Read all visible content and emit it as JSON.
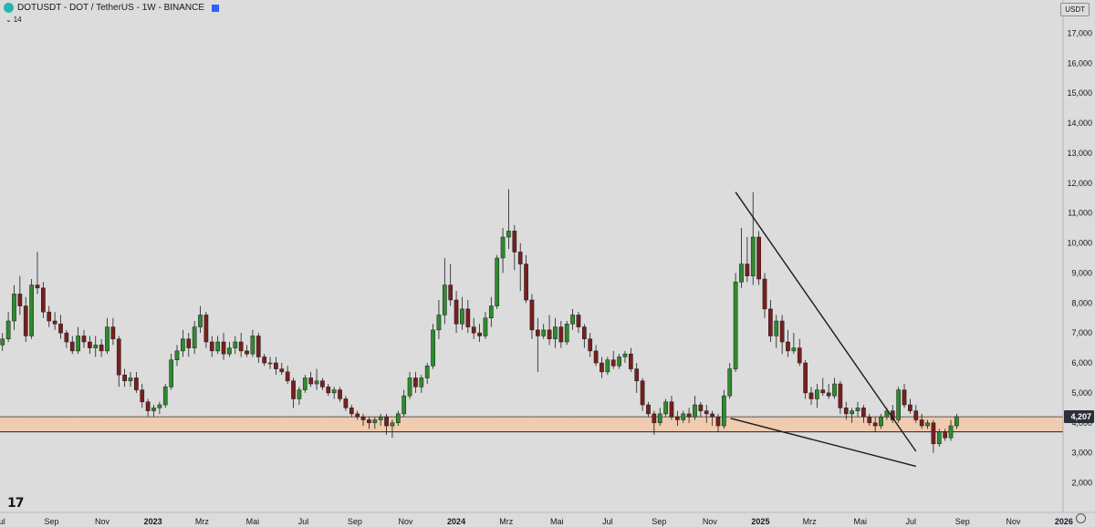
{
  "header": {
    "symbol_line": "DOTUSDT - DOT / TetherUS - 1W - BINANCE",
    "indicator_value": "14",
    "currency": "USDT"
  },
  "colors": {
    "background": "#dcdcdc",
    "bull": "#2e8b2e",
    "bear": "#7a1e1e",
    "zone": "#f2c8a8",
    "price_tag": "#2b2f3a"
  },
  "chart_data": {
    "type": "candlestick",
    "title": "DOTUSDT - DOT / TetherUS - 1W - BINANCE",
    "ylim": [
      1500,
      17700
    ],
    "y_ticks": [
      2000,
      3000,
      4000,
      5000,
      6000,
      7000,
      8000,
      9000,
      10000,
      11000,
      12000,
      13000,
      14000,
      15000,
      16000,
      17000
    ],
    "y_tick_labels": [
      "2,000",
      "3,000",
      "4,000",
      "5,000",
      "6,000",
      "7,000",
      "8,000",
      "9,000",
      "10,000",
      "11,000",
      "12,000",
      "13,000",
      "14,000",
      "15,000",
      "16,000",
      "17,000"
    ],
    "x_range": [
      "2022-07-01",
      "2025-12-31"
    ],
    "x_ticks": [
      {
        "date": "2022-07-01",
        "label": "Jul"
      },
      {
        "date": "2022-09-01",
        "label": "Sep"
      },
      {
        "date": "2022-11-01",
        "label": "Nov"
      },
      {
        "date": "2023-01-01",
        "label": "2023"
      },
      {
        "date": "2023-03-01",
        "label": "Mrz"
      },
      {
        "date": "2023-05-01",
        "label": "Mai"
      },
      {
        "date": "2023-07-01",
        "label": "Jul"
      },
      {
        "date": "2023-09-01",
        "label": "Sep"
      },
      {
        "date": "2023-11-01",
        "label": "Nov"
      },
      {
        "date": "2024-01-01",
        "label": "2024"
      },
      {
        "date": "2024-03-01",
        "label": "Mrz"
      },
      {
        "date": "2024-05-01",
        "label": "Mai"
      },
      {
        "date": "2024-07-01",
        "label": "Jul"
      },
      {
        "date": "2024-09-01",
        "label": "Sep"
      },
      {
        "date": "2024-11-01",
        "label": "Nov"
      },
      {
        "date": "2025-01-01",
        "label": "2025"
      },
      {
        "date": "2025-03-01",
        "label": "Mrz"
      },
      {
        "date": "2025-05-01",
        "label": "Mai"
      },
      {
        "date": "2025-07-01",
        "label": "Jul"
      },
      {
        "date": "2025-09-01",
        "label": "Sep"
      },
      {
        "date": "2025-11-01",
        "label": "Nov"
      },
      {
        "date": "2026-01-01",
        "label": "2026"
      }
    ],
    "last_price": 4207,
    "last_price_label": "4,207",
    "support_zone": [
      3700,
      4200
    ],
    "trend_lines": [
      {
        "name": "upper",
        "from": {
          "date": "2024-12-02",
          "price": 11700
        },
        "to": {
          "date": "2025-07-07",
          "price": 3050
        }
      },
      {
        "name": "lower",
        "from": {
          "date": "2024-11-26",
          "price": 4150
        },
        "to": {
          "date": "2025-07-07",
          "price": 2550
        }
      }
    ],
    "start_date": "2022-07-04",
    "interval_days": 7,
    "ohlc": [
      [
        6600,
        7000,
        6400,
        6800
      ],
      [
        6800,
        7700,
        6700,
        7400
      ],
      [
        7400,
        8600,
        7100,
        8300
      ],
      [
        8300,
        8900,
        7600,
        7900
      ],
      [
        7900,
        8200,
        6700,
        6900
      ],
      [
        6900,
        8800,
        6800,
        8600
      ],
      [
        8600,
        9700,
        8300,
        8500
      ],
      [
        8500,
        8700,
        7500,
        7700
      ],
      [
        7700,
        7900,
        7200,
        7400
      ],
      [
        7400,
        7700,
        7100,
        7300
      ],
      [
        7300,
        7600,
        6800,
        7000
      ],
      [
        7000,
        7100,
        6500,
        6700
      ],
      [
        6700,
        6900,
        6300,
        6400
      ],
      [
        6400,
        7200,
        6300,
        6900
      ],
      [
        6900,
        7100,
        6500,
        6700
      ],
      [
        6700,
        6900,
        6300,
        6500
      ],
      [
        6500,
        6900,
        6200,
        6600
      ],
      [
        6600,
        6800,
        6200,
        6400
      ],
      [
        6400,
        7500,
        6300,
        7200
      ],
      [
        7200,
        7500,
        6600,
        6800
      ],
      [
        6800,
        6900,
        5200,
        5600
      ],
      [
        5600,
        5800,
        5200,
        5400
      ],
      [
        5400,
        5700,
        5200,
        5500
      ],
      [
        5500,
        5700,
        5000,
        5100
      ],
      [
        5100,
        5300,
        4500,
        4700
      ],
      [
        4700,
        4800,
        4200,
        4400
      ],
      [
        4400,
        4600,
        4200,
        4500
      ],
      [
        4500,
        4700,
        4300,
        4600
      ],
      [
        4600,
        5300,
        4500,
        5200
      ],
      [
        5200,
        6300,
        5100,
        6100
      ],
      [
        6100,
        6600,
        5900,
        6400
      ],
      [
        6400,
        7100,
        6200,
        6800
      ],
      [
        6800,
        7000,
        6200,
        6500
      ],
      [
        6500,
        7400,
        6300,
        7200
      ],
      [
        7200,
        7900,
        7000,
        7600
      ],
      [
        7600,
        7700,
        6500,
        6700
      ],
      [
        6700,
        6900,
        6200,
        6400
      ],
      [
        6400,
        6900,
        6300,
        6700
      ],
      [
        6700,
        7000,
        6100,
        6300
      ],
      [
        6300,
        6700,
        6200,
        6500
      ],
      [
        6500,
        6900,
        6300,
        6700
      ],
      [
        6700,
        7000,
        6200,
        6400
      ],
      [
        6400,
        6600,
        6200,
        6300
      ],
      [
        6300,
        7100,
        6200,
        6900
      ],
      [
        6900,
        7000,
        6000,
        6200
      ],
      [
        6200,
        6300,
        5900,
        6000
      ],
      [
        6000,
        6200,
        5800,
        6000
      ],
      [
        6000,
        6200,
        5600,
        5800
      ],
      [
        5800,
        6000,
        5600,
        5700
      ],
      [
        5700,
        5900,
        5300,
        5400
      ],
      [
        5400,
        5500,
        4500,
        4800
      ],
      [
        4800,
        5200,
        4600,
        5100
      ],
      [
        5100,
        5600,
        5000,
        5500
      ],
      [
        5500,
        5700,
        5200,
        5300
      ],
      [
        5300,
        5800,
        5100,
        5400
      ],
      [
        5400,
        5500,
        5100,
        5200
      ],
      [
        5200,
        5300,
        4900,
        5000
      ],
      [
        5000,
        5200,
        4800,
        5100
      ],
      [
        5100,
        5200,
        4700,
        4800
      ],
      [
        4800,
        4900,
        4400,
        4500
      ],
      [
        4500,
        4600,
        4200,
        4300
      ],
      [
        4300,
        4400,
        4100,
        4200
      ],
      [
        4200,
        4300,
        3900,
        4100
      ],
      [
        4100,
        4200,
        3800,
        4000
      ],
      [
        4000,
        4200,
        3800,
        4100
      ],
      [
        4100,
        4300,
        3900,
        4200
      ],
      [
        4200,
        4300,
        3600,
        3900
      ],
      [
        3900,
        4100,
        3500,
        4000
      ],
      [
        4000,
        4400,
        3900,
        4300
      ],
      [
        4300,
        5100,
        4200,
        4900
      ],
      [
        4900,
        5700,
        4800,
        5500
      ],
      [
        5500,
        5700,
        5000,
        5200
      ],
      [
        5200,
        5600,
        5000,
        5500
      ],
      [
        5500,
        6000,
        5300,
        5900
      ],
      [
        5900,
        7300,
        5800,
        7100
      ],
      [
        7100,
        8100,
        6800,
        7600
      ],
      [
        7600,
        9500,
        7300,
        8600
      ],
      [
        8600,
        9300,
        7900,
        8100
      ],
      [
        8100,
        8400,
        7000,
        7300
      ],
      [
        7300,
        8200,
        7100,
        7800
      ],
      [
        7800,
        8100,
        7000,
        7200
      ],
      [
        7200,
        7500,
        6800,
        7000
      ],
      [
        7000,
        7300,
        6700,
        6900
      ],
      [
        6900,
        7700,
        6800,
        7500
      ],
      [
        7500,
        8200,
        7200,
        7900
      ],
      [
        7900,
        9600,
        7800,
        9500
      ],
      [
        9500,
        10500,
        9000,
        10200
      ],
      [
        10200,
        11800,
        9800,
        10400
      ],
      [
        10400,
        10600,
        9100,
        9700
      ],
      [
        9700,
        10000,
        8400,
        9300
      ],
      [
        9300,
        9600,
        8000,
        8100
      ],
      [
        8100,
        8300,
        6800,
        7100
      ],
      [
        7100,
        7500,
        5700,
        6900
      ],
      [
        6900,
        7300,
        6800,
        7100
      ],
      [
        7100,
        7600,
        6600,
        6800
      ],
      [
        6800,
        7500,
        6500,
        7200
      ],
      [
        7200,
        7400,
        6500,
        6700
      ],
      [
        6700,
        7400,
        6600,
        7300
      ],
      [
        7300,
        7800,
        7100,
        7600
      ],
      [
        7600,
        7700,
        7000,
        7200
      ],
      [
        7200,
        7300,
        6500,
        6800
      ],
      [
        6800,
        7000,
        6200,
        6400
      ],
      [
        6400,
        6600,
        5900,
        6000
      ],
      [
        6000,
        6200,
        5500,
        5700
      ],
      [
        5700,
        6200,
        5600,
        6100
      ],
      [
        6100,
        6400,
        5800,
        5900
      ],
      [
        5900,
        6300,
        5800,
        6200
      ],
      [
        6200,
        6400,
        6000,
        6300
      ],
      [
        6300,
        6500,
        5700,
        5800
      ],
      [
        5800,
        6000,
        5000,
        5400
      ],
      [
        5400,
        5500,
        4400,
        4600
      ],
      [
        4600,
        4700,
        4200,
        4300
      ],
      [
        4300,
        4400,
        3600,
        4000
      ],
      [
        4000,
        4500,
        3900,
        4300
      ],
      [
        4300,
        4800,
        4200,
        4700
      ],
      [
        4700,
        4900,
        4100,
        4200
      ],
      [
        4200,
        4400,
        3900,
        4100
      ],
      [
        4100,
        4400,
        4000,
        4300
      ],
      [
        4300,
        4500,
        4000,
        4200
      ],
      [
        4200,
        4900,
        4100,
        4600
      ],
      [
        4600,
        4700,
        4200,
        4400
      ],
      [
        4400,
        4600,
        4000,
        4300
      ],
      [
        4300,
        4400,
        3900,
        4200
      ],
      [
        4200,
        4300,
        3700,
        3900
      ],
      [
        3900,
        5100,
        3800,
        4900
      ],
      [
        4900,
        6000,
        4800,
        5800
      ],
      [
        5800,
        9000,
        5700,
        8700
      ],
      [
        8700,
        10500,
        8500,
        9300
      ],
      [
        9300,
        10200,
        8700,
        8900
      ],
      [
        8900,
        11700,
        8600,
        10200
      ],
      [
        10200,
        10400,
        8600,
        8800
      ],
      [
        8800,
        9000,
        7500,
        7800
      ],
      [
        7800,
        8100,
        6700,
        6900
      ],
      [
        6900,
        7600,
        6500,
        7400
      ],
      [
        7400,
        7600,
        6300,
        6700
      ],
      [
        6700,
        7100,
        6200,
        6400
      ],
      [
        6400,
        7000,
        6300,
        6500
      ],
      [
        6500,
        6800,
        5900,
        6000
      ],
      [
        6000,
        6100,
        4800,
        5000
      ],
      [
        5000,
        5200,
        4600,
        4800
      ],
      [
        4800,
        5300,
        4500,
        5100
      ],
      [
        5100,
        5500,
        4900,
        5000
      ],
      [
        5000,
        5300,
        4800,
        4900
      ],
      [
        4900,
        5500,
        4800,
        5300
      ],
      [
        5300,
        5400,
        4300,
        4500
      ],
      [
        4500,
        4700,
        4100,
        4300
      ],
      [
        4300,
        4500,
        4000,
        4400
      ],
      [
        4400,
        4700,
        4200,
        4500
      ],
      [
        4500,
        4600,
        4000,
        4200
      ],
      [
        4200,
        4300,
        3900,
        4000
      ],
      [
        4000,
        4200,
        3700,
        3900
      ],
      [
        3900,
        4300,
        3800,
        4200
      ],
      [
        4200,
        4500,
        4100,
        4400
      ],
      [
        4400,
        4600,
        4000,
        4100
      ],
      [
        4100,
        5200,
        4000,
        5100
      ],
      [
        5100,
        5300,
        4500,
        4600
      ],
      [
        4600,
        4800,
        4300,
        4400
      ],
      [
        4400,
        4600,
        4000,
        4100
      ],
      [
        4100,
        4300,
        3800,
        3900
      ],
      [
        3900,
        4100,
        3800,
        4000
      ],
      [
        4000,
        4100,
        3000,
        3300
      ],
      [
        3300,
        3800,
        3200,
        3700
      ],
      [
        3700,
        3800,
        3400,
        3500
      ],
      [
        3500,
        4100,
        3400,
        3900
      ],
      [
        3900,
        4300,
        3800,
        4207
      ]
    ]
  }
}
